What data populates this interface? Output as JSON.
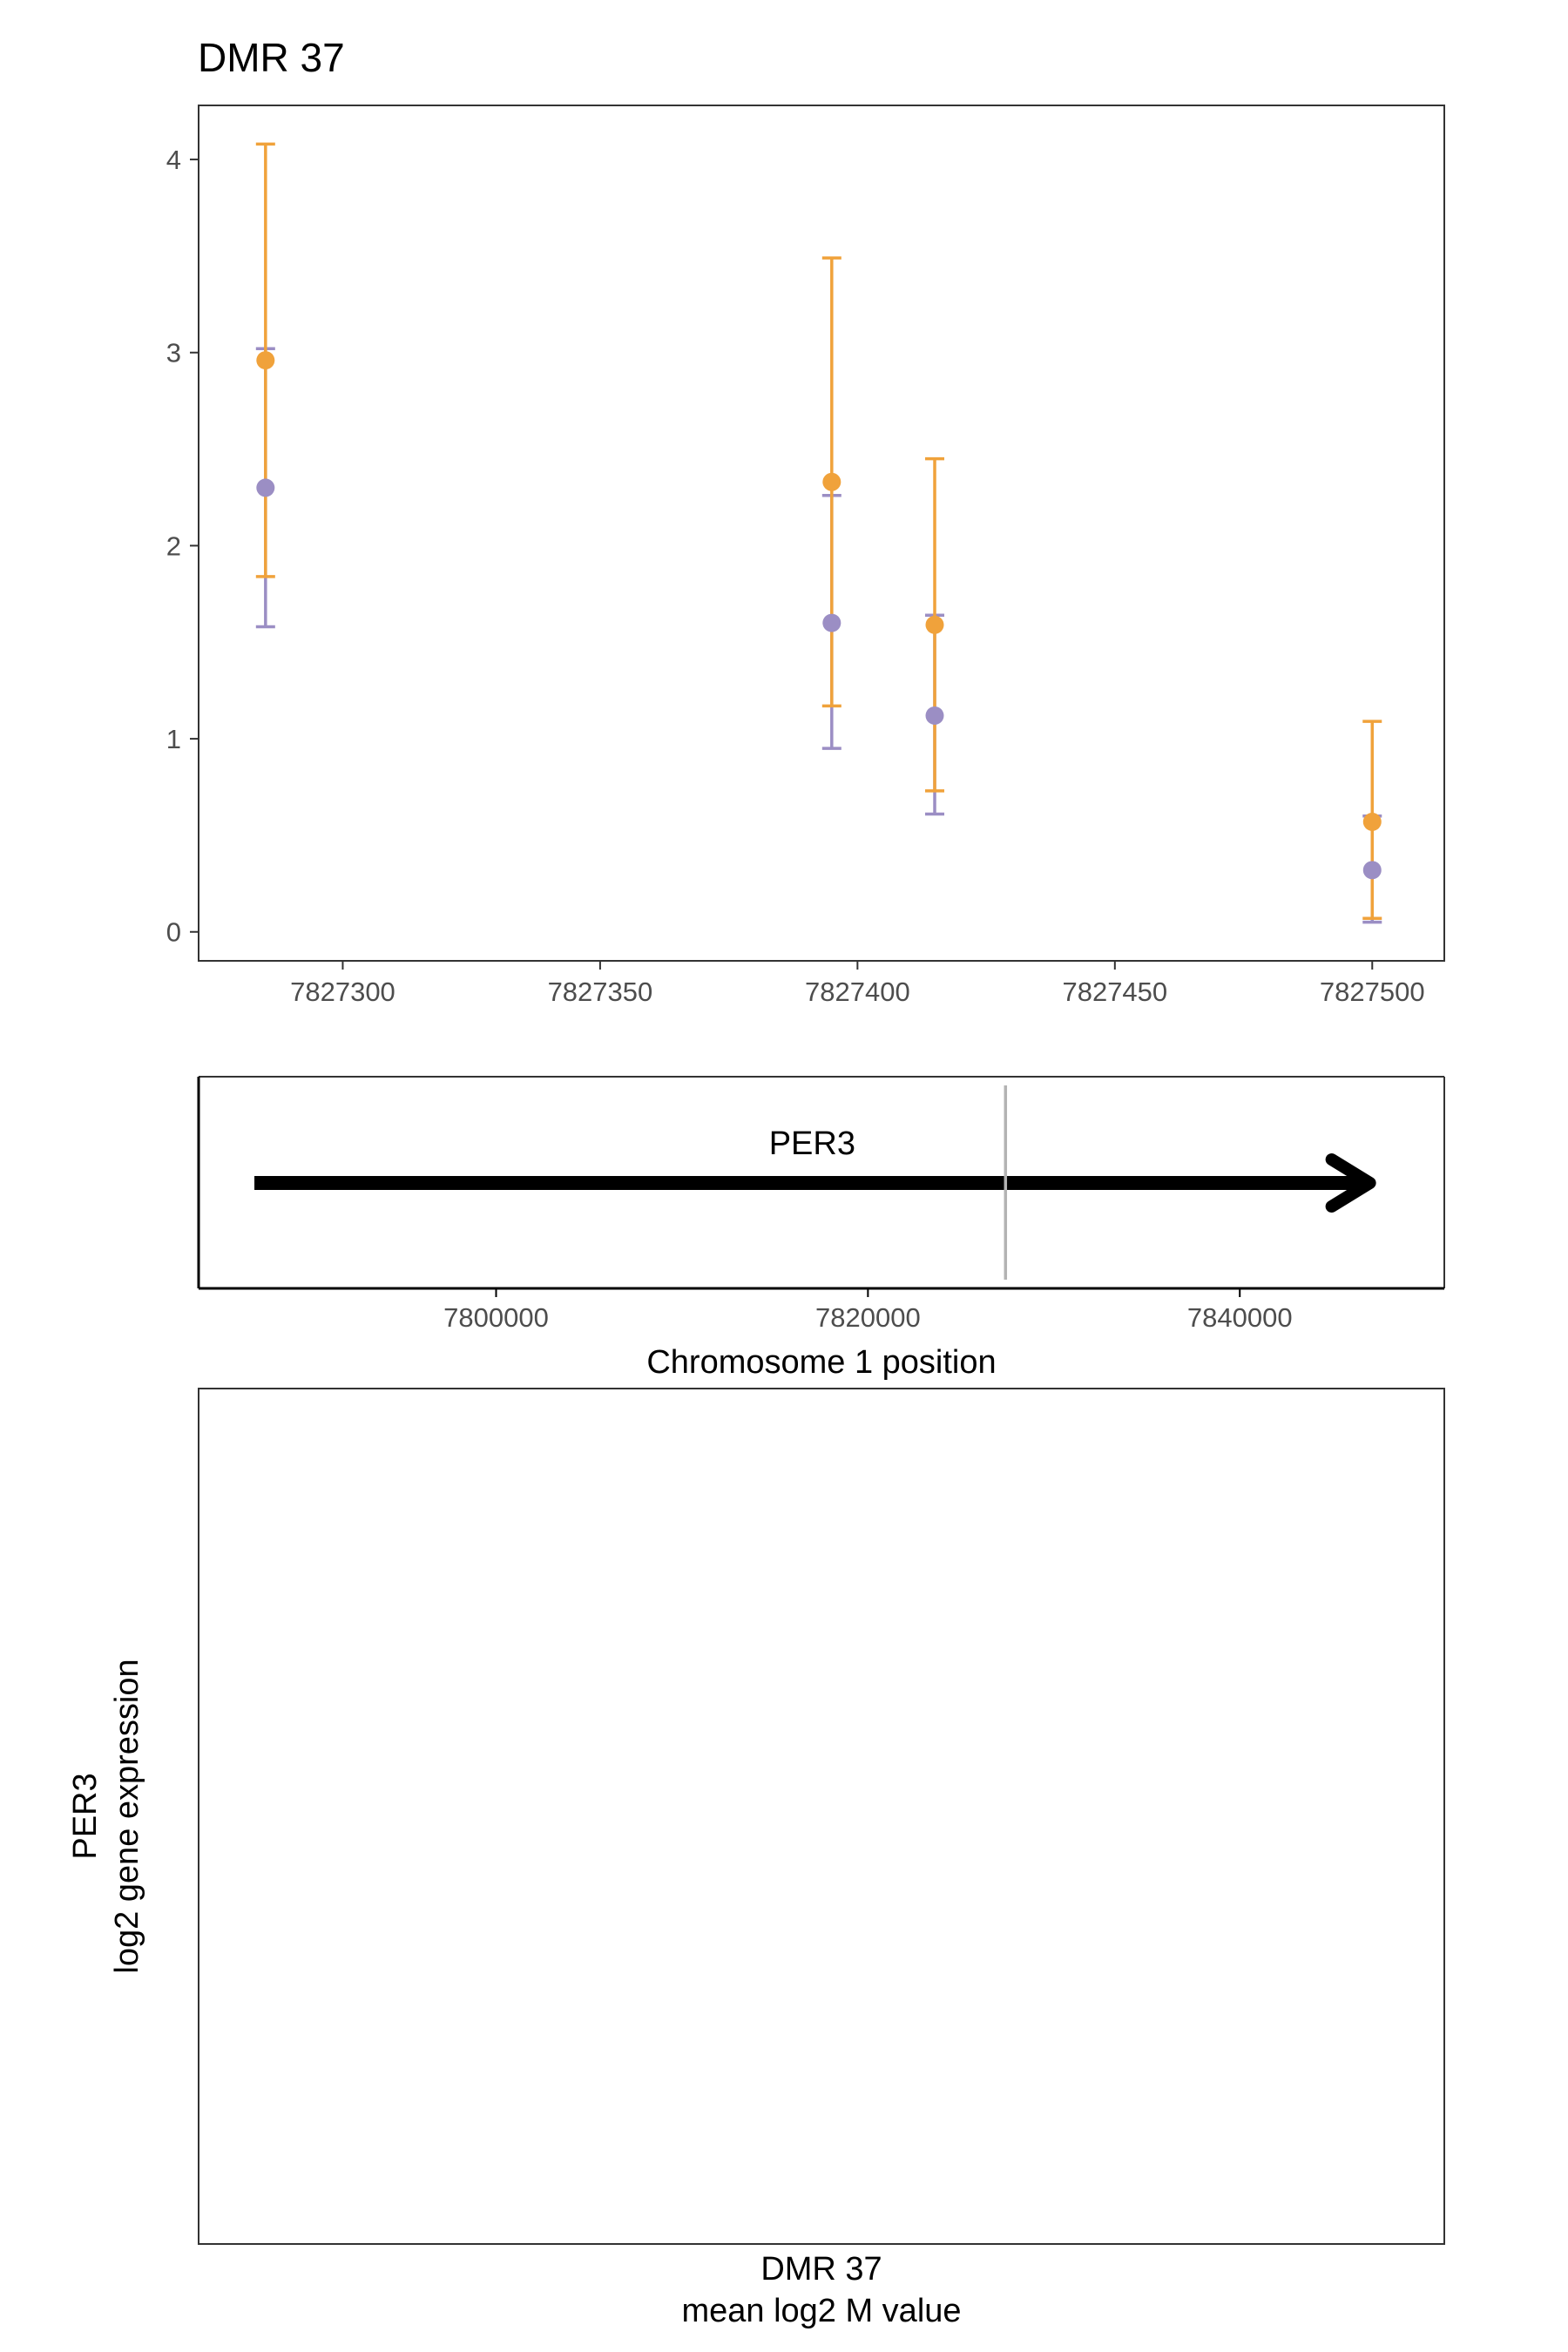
{
  "title": "DMR 37",
  "colors": {
    "series_orange": "#F0A23B",
    "series_purple": "#9B8EC4",
    "panel_border": "#333333",
    "tick_text": "#4d4d4d",
    "marker_line": "#b3b3b3",
    "arrow": "#000000"
  },
  "chart_data": [
    {
      "type": "scatter",
      "title": "DMR 37",
      "xlabel": "",
      "ylabel": "",
      "xlim": [
        7827272,
        7827514
      ],
      "ylim": [
        -0.15,
        4.28
      ],
      "x_ticks": [
        7827300,
        7827350,
        7827400,
        7827450,
        7827500
      ],
      "x_tick_labels": [
        "7827300",
        "7827350",
        "7827400",
        "7827450",
        "7827500"
      ],
      "y_ticks": [
        0,
        1,
        2,
        3,
        4
      ],
      "y_tick_labels": [
        "0",
        "1",
        "2",
        "3",
        "4"
      ],
      "grid": false,
      "error_bars": true,
      "series": [
        {
          "color": "#9B8EC4",
          "points": [
            {
              "x": 7827285,
              "y": 2.3,
              "lo": 1.58,
              "hi": 3.02
            },
            {
              "x": 7827395,
              "y": 1.6,
              "lo": 0.95,
              "hi": 2.26
            },
            {
              "x": 7827415,
              "y": 1.12,
              "lo": 0.61,
              "hi": 1.64
            },
            {
              "x": 7827500,
              "y": 0.32,
              "lo": 0.05,
              "hi": 0.6
            }
          ]
        },
        {
          "color": "#F0A23B",
          "points": [
            {
              "x": 7827285,
              "y": 2.96,
              "lo": 1.84,
              "hi": 4.08
            },
            {
              "x": 7827395,
              "y": 2.33,
              "lo": 1.17,
              "hi": 3.49
            },
            {
              "x": 7827415,
              "y": 1.59,
              "lo": 0.73,
              "hi": 2.45
            },
            {
              "x": 7827500,
              "y": 0.57,
              "lo": 0.07,
              "hi": 1.09
            }
          ]
        }
      ]
    },
    {
      "type": "gene-track",
      "xlabel": "Chromosome 1 position",
      "xlim": [
        7784000,
        7851000
      ],
      "x_ticks": [
        7800000,
        7820000,
        7840000
      ],
      "x_tick_labels": [
        "7800000",
        "7820000",
        "7840000"
      ],
      "gene": {
        "name": "PER3",
        "start": 7787000,
        "end": 7847000,
        "strand": "+"
      },
      "dmr_position": 7827400
    },
    {
      "type": "scatter",
      "xlabel_line1": "DMR 37",
      "xlabel_line2": "mean log2 M value",
      "ylabel_line1": "PER3",
      "ylabel_line2": "log2 gene expression",
      "series": []
    }
  ]
}
